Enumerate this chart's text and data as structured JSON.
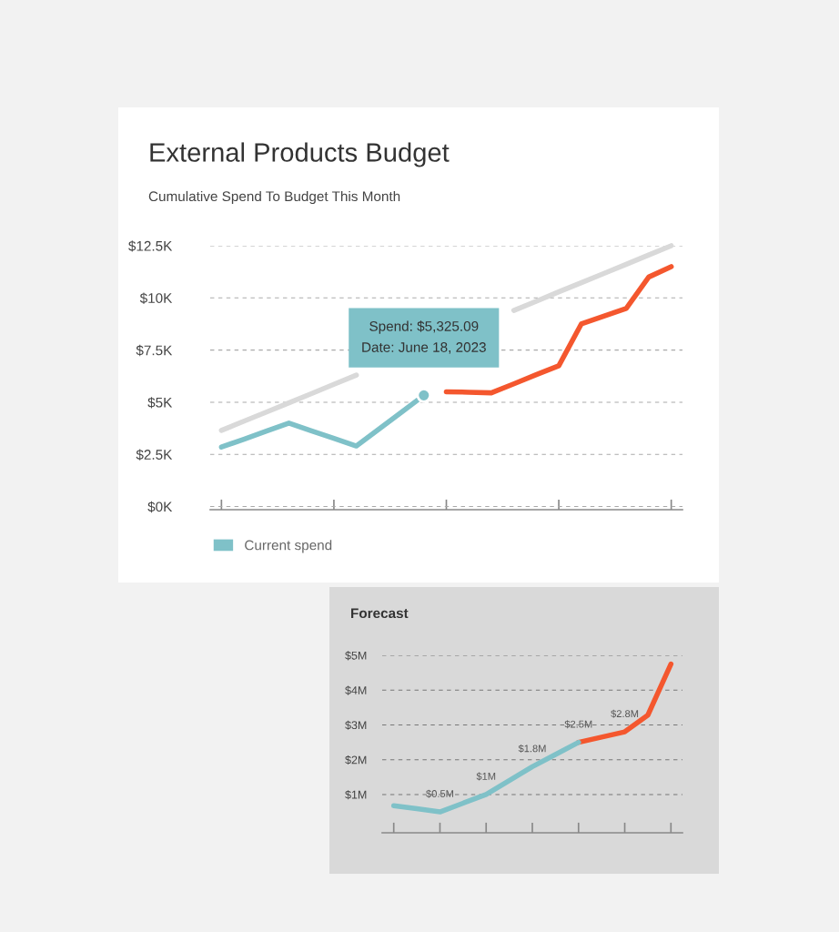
{
  "chart_data": [
    {
      "type": "line",
      "title": "External Products Budget",
      "subtitle": "Cumulative Spend To Budget This Month",
      "categories": [
        null,
        null,
        null,
        null,
        null,
        null,
        null,
        null,
        null,
        null,
        null,
        null,
        null,
        null,
        null,
        null,
        null,
        null,
        null,
        null,
        null
      ],
      "series": [
        {
          "color": "#d9d9d9",
          "values": [
            3.65,
            4.09,
            4.53,
            4.97,
            5.41,
            5.86,
            6.3,
            null,
            null,
            null,
            null,
            null,
            null,
            9.4,
            9.84,
            10.29,
            10.73,
            11.17,
            11.61,
            12.06,
            12.5
          ]
        },
        {
          "name": "Current spend",
          "color": "#7fc1c8",
          "values": [
            2.85,
            3.23,
            3.62,
            4.0,
            3.63,
            3.27,
            2.9,
            3.71,
            4.52,
            5.33,
            null,
            null,
            null,
            null,
            null,
            null,
            null,
            null,
            null,
            null,
            null
          ]
        },
        {
          "color": "#f4572e",
          "values": [
            null,
            null,
            null,
            null,
            null,
            null,
            null,
            null,
            null,
            null,
            5.5,
            5.48,
            5.45,
            5.88,
            6.32,
            6.75,
            8.75,
            9.13,
            9.5,
            11.0,
            11.5
          ]
        }
      ],
      "ylim": [
        -0.15,
        12.5
      ],
      "yticks": [
        {
          "value": 0,
          "label": "$0K"
        },
        {
          "value": 2.5,
          "label": "$2.5K"
        },
        {
          "value": 5,
          "label": "$5K"
        },
        {
          "value": 7.5,
          "label": "$7.5K"
        },
        {
          "value": 10,
          "label": "$10K"
        },
        {
          "value": 12.5,
          "label": "$12.5K"
        }
      ],
      "annotations": [
        "Spend: $5,325.09\nDate: June 18, 2023"
      ],
      "grid": "y",
      "legend": "bottom left",
      "tick_labels": "y"
    },
    {
      "type": "line",
      "title": "Forecast",
      "categories": [
        null,
        null,
        null,
        null,
        null,
        null,
        null,
        null,
        null,
        null,
        null,
        null,
        null
      ],
      "series": [
        {
          "color": "#7fc1c8",
          "values": [
            0.68,
            0.59,
            0.5,
            0.75,
            1.0,
            1.4,
            1.8,
            2.15,
            2.5,
            null,
            null,
            null,
            null
          ],
          "value_labels": [
            null,
            null,
            "$0.5M",
            null,
            "$1M",
            null,
            "$1.8M",
            null,
            "$2.5M",
            null,
            null,
            null,
            null
          ]
        },
        {
          "color": "#f4572e",
          "values": [
            null,
            null,
            null,
            null,
            null,
            null,
            null,
            null,
            2.5,
            2.65,
            2.8,
            3.28,
            4.75
          ],
          "value_labels": [
            null,
            null,
            null,
            null,
            null,
            null,
            null,
            null,
            null,
            null,
            "$2.8M",
            null,
            null
          ]
        }
      ],
      "ylim": [
        -0.1,
        5
      ],
      "yticks": [
        {
          "value": 1,
          "label": "$1M"
        },
        {
          "value": 2,
          "label": "$2M"
        },
        {
          "value": 3,
          "label": "$3M"
        },
        {
          "value": 4,
          "label": "$4M"
        },
        {
          "value": 5,
          "label": "$5M"
        }
      ],
      "grid": "y",
      "tick_labels": "y"
    }
  ]
}
